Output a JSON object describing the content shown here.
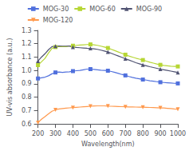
{
  "chart_data": {
    "type": "line",
    "xlabel": "Wavelength(nm)",
    "ylabel": "UV-vis absorbance (a.u.)",
    "x": [
      200,
      220,
      240,
      260,
      280,
      300,
      320,
      340,
      360,
      380,
      400,
      420,
      440,
      460,
      480,
      500,
      520,
      540,
      560,
      580,
      600,
      620,
      640,
      660,
      680,
      700,
      720,
      740,
      760,
      780,
      800,
      820,
      840,
      860,
      880,
      900,
      920,
      940,
      960,
      980,
      1000
    ],
    "series": [
      {
        "name": "MOG-30",
        "marker": "square",
        "values": [
          0.94,
          0.945,
          0.95,
          0.96,
          0.975,
          0.985,
          0.988,
          0.985,
          0.988,
          0.99,
          0.995,
          0.998,
          1.0,
          1.005,
          1.01,
          1.01,
          1.008,
          1.005,
          1.002,
          1.0,
          0.998,
          0.992,
          0.985,
          0.978,
          0.97,
          0.963,
          0.955,
          0.948,
          0.942,
          0.938,
          0.932,
          0.928,
          0.923,
          0.92,
          0.916,
          0.912,
          0.91,
          0.908,
          0.906,
          0.904,
          0.903
        ]
      },
      {
        "name": "MOG-60",
        "marker": "square",
        "values": [
          1.04,
          1.065,
          1.09,
          1.13,
          1.165,
          1.175,
          1.178,
          1.178,
          1.178,
          1.182,
          1.185,
          1.188,
          1.19,
          1.192,
          1.194,
          1.195,
          1.192,
          1.188,
          1.182,
          1.175,
          1.168,
          1.158,
          1.148,
          1.138,
          1.128,
          1.118,
          1.108,
          1.1,
          1.092,
          1.085,
          1.078,
          1.07,
          1.062,
          1.055,
          1.048,
          1.042,
          1.038,
          1.035,
          1.032,
          1.03,
          1.03
        ]
      },
      {
        "name": "MOG-90",
        "marker": "triangle-up",
        "values": [
          1.07,
          1.1,
          1.125,
          1.155,
          1.178,
          1.182,
          1.183,
          1.182,
          1.182,
          1.183,
          1.175,
          1.172,
          1.17,
          1.168,
          1.166,
          1.165,
          1.162,
          1.158,
          1.152,
          1.145,
          1.138,
          1.128,
          1.118,
          1.108,
          1.098,
          1.088,
          1.078,
          1.068,
          1.058,
          1.05,
          1.042,
          1.035,
          1.028,
          1.022,
          1.016,
          1.01,
          1.005,
          1.0,
          0.995,
          0.99,
          0.985
        ]
      },
      {
        "name": "MOG-120",
        "marker": "triangle-down",
        "values": [
          0.61,
          0.635,
          0.655,
          0.675,
          0.695,
          0.705,
          0.712,
          0.715,
          0.718,
          0.72,
          0.722,
          0.724,
          0.726,
          0.728,
          0.73,
          0.732,
          0.734,
          0.735,
          0.735,
          0.735,
          0.733,
          0.732,
          0.731,
          0.73,
          0.729,
          0.728,
          0.727,
          0.727,
          0.726,
          0.725,
          0.725,
          0.724,
          0.723,
          0.722,
          0.721,
          0.72,
          0.719,
          0.717,
          0.715,
          0.712,
          0.71
        ]
      }
    ],
    "xlim": [
      200,
      1000
    ],
    "ylim": [
      0.6,
      1.3
    ],
    "xticks": [
      200,
      300,
      400,
      500,
      600,
      700,
      800,
      900,
      1000
    ],
    "yticks": [
      0.6,
      0.7,
      0.8,
      0.9,
      {
        "value": 1.0,
        "label": "1.0"
      },
      1.1,
      1.2,
      1.3
    ],
    "grid": false,
    "legend": "top"
  }
}
